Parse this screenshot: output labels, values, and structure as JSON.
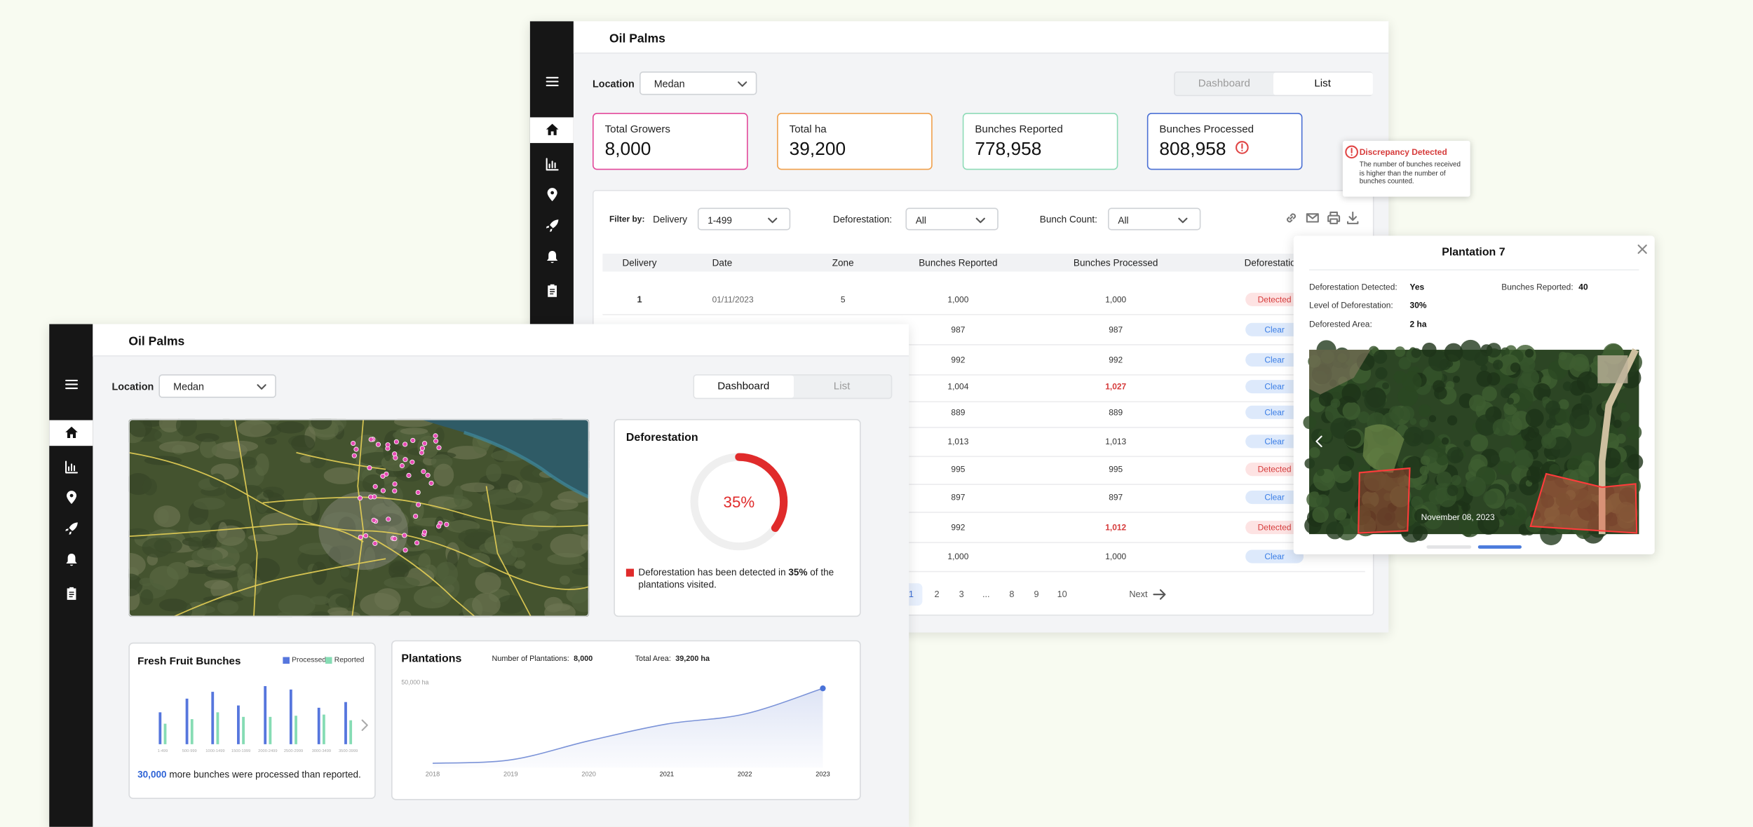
{
  "back_window": {
    "title": "Oil Palms",
    "location_label": "Location",
    "location": "Medan",
    "tabs": [
      "Dashboard",
      "List"
    ],
    "active_tab": 1,
    "stats": [
      {
        "label": "Total Growers",
        "value": "8,000",
        "color": "#e2489a"
      },
      {
        "label": "Total ha",
        "value": "39,200",
        "color": "#f0a04b"
      },
      {
        "label": "Bunches Reported",
        "value": "778,958",
        "color": "#8edbb7"
      },
      {
        "label": "Bunches Processed",
        "value": "808,958",
        "color": "#4a6fd4"
      }
    ],
    "filters": {
      "label": "Filter by:",
      "items": [
        {
          "label": "Delivery",
          "value": "1-499"
        },
        {
          "label": "Deforestation:",
          "value": "All"
        },
        {
          "label": "Bunch Count:",
          "value": "All"
        }
      ]
    },
    "table": {
      "columns": [
        "Delivery",
        "Date",
        "Zone",
        "Bunches Reported",
        "Bunches Processed",
        "Deforestation"
      ],
      "rows": [
        [
          "1",
          "01/11/2023",
          "5",
          "1,000",
          "1,000",
          "Detected"
        ],
        [
          null,
          null,
          null,
          "987",
          "987",
          "Clear"
        ],
        [
          null,
          null,
          null,
          "992",
          "992",
          "Clear"
        ],
        [
          null,
          null,
          null,
          "1,004",
          "1,027",
          "Clear"
        ],
        [
          null,
          null,
          null,
          "889",
          "889",
          "Clear"
        ],
        [
          null,
          null,
          null,
          "1,013",
          "1,013",
          "Clear"
        ],
        [
          null,
          null,
          null,
          "995",
          "995",
          "Detected"
        ],
        [
          null,
          null,
          null,
          "897",
          "897",
          "Clear"
        ],
        [
          null,
          null,
          null,
          "992",
          "1,012",
          "Detected"
        ],
        [
          null,
          null,
          null,
          "1,000",
          "1,000",
          "Clear"
        ]
      ],
      "highlight_rows": [
        3,
        8
      ],
      "status_styles": {
        "Detected": {
          "bg": "#fde3e3",
          "fg": "#d63b3b"
        },
        "Clear": {
          "bg": "#dde9fb",
          "fg": "#3b7ee6"
        }
      }
    },
    "pagination": {
      "pages": [
        "1",
        "2",
        "3",
        "...",
        "8",
        "9",
        "10"
      ],
      "active": 0,
      "next": "Next"
    }
  },
  "discrepancy_popover": {
    "title": "Discrepancy Detected",
    "text": "The number of bunches received is higher than the number of bunches counted."
  },
  "plantation_popup": {
    "title": "Plantation 7",
    "fields": [
      {
        "label": "Deforestation Detected:",
        "value": "Yes"
      },
      {
        "label": "Bunches Reported:",
        "value": "40"
      },
      {
        "label": "Level of Deforestation:",
        "value": "30%"
      },
      {
        "label": "Deforested Area:",
        "value": "2 ha"
      }
    ],
    "image_date": "November 08, 2023"
  },
  "front_window": {
    "title": "Oil Palms",
    "location_label": "Location",
    "location": "Medan",
    "tabs": [
      "Dashboard",
      "List"
    ],
    "active_tab": 0,
    "deforestation": {
      "title": "Deforestation",
      "percent": 35,
      "percent_label": "35%",
      "color": "#e02b2b",
      "note": [
        "Deforestation has been detected in ",
        "35%",
        " of the plantations visited."
      ]
    },
    "fresh_fruit_bunches": {
      "title": "Fresh Fruit Bunches",
      "type": "bar",
      "categories": [
        "1-499",
        "500-999",
        "1000-1499",
        "1500-1999",
        "2000-2499",
        "2500-2999",
        "3000-3499",
        "3500-3999"
      ],
      "series": [
        {
          "name": "Processed",
          "color": "#5676dd",
          "values": [
            28,
            40,
            46,
            34,
            51,
            48,
            32,
            37
          ]
        },
        {
          "name": "Reported",
          "color": "#86dcb4",
          "values": [
            18,
            22,
            28,
            24,
            24,
            25,
            26,
            21
          ]
        }
      ],
      "note": [
        "30,000",
        " more bunches were processed than reported."
      ]
    },
    "plantations": {
      "title": "Plantations",
      "type": "area",
      "stats": [
        {
          "label": "Number of Plantations:",
          "value": "8,000"
        },
        {
          "label": "Total Area:",
          "value": "39,200 ha"
        }
      ],
      "x": [
        2018,
        2019,
        2020,
        2021,
        2022,
        2023
      ],
      "values": [
        2600,
        4600,
        15800,
        25700,
        31600,
        46700
      ],
      "ylim": [
        0,
        50000
      ],
      "yticks": [
        {
          "value": 50000,
          "label": "50,000 ha"
        }
      ],
      "color": "#7b93d8"
    }
  }
}
